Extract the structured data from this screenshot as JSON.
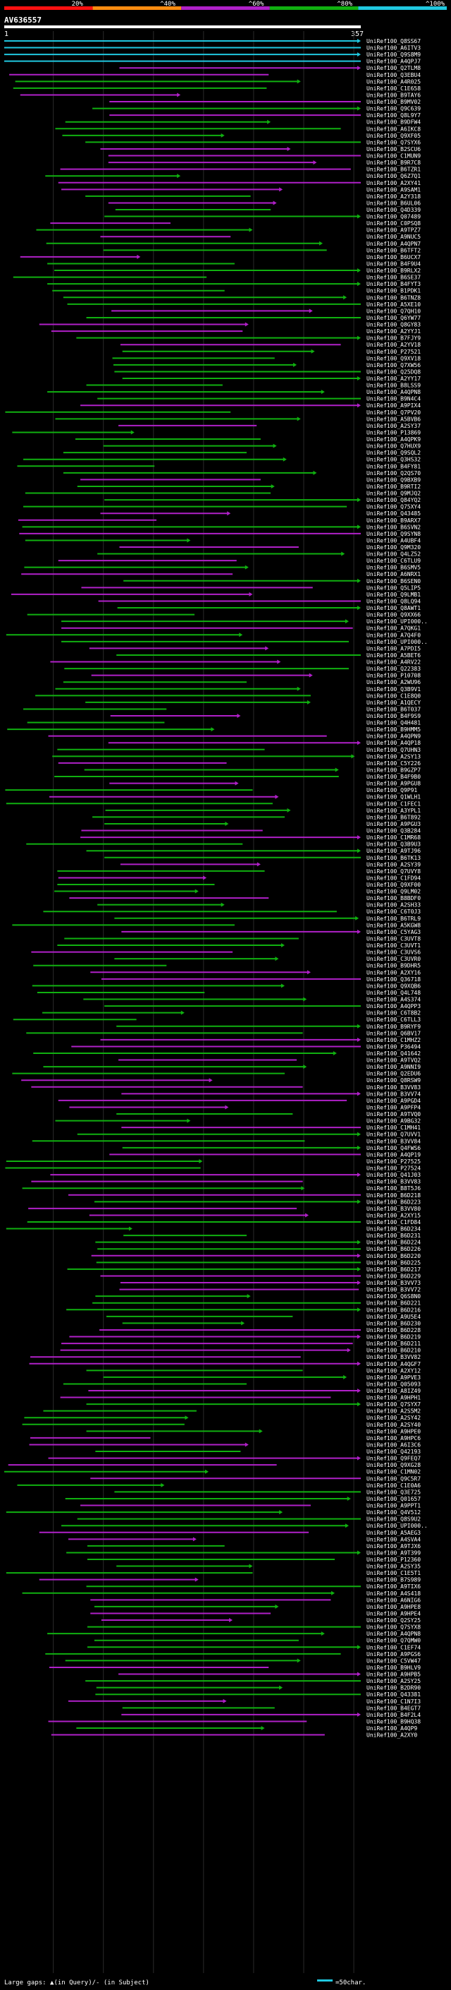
{
  "chart_data": {
    "type": "alignment-overview",
    "title": "AV636557",
    "query_length": 357,
    "axis": {
      "start_label": "1",
      "end_label": "357",
      "xlim": [
        1,
        357
      ]
    },
    "identity_legend": [
      {
        "label": "20%",
        "color": "#ff1010"
      },
      {
        "label": "^40%",
        "color": "#ff8c10"
      },
      {
        "label": "^60%",
        "color": "#b020c8"
      },
      {
        "label": "^80%",
        "color": "#10b010"
      },
      {
        "label": "^100%",
        "color": "#20c8e0"
      }
    ],
    "footer": {
      "text": "Large gaps: ▲(in Query)/- (in Subject)",
      "scale_label": "=50char."
    },
    "hits": []
  }
}
